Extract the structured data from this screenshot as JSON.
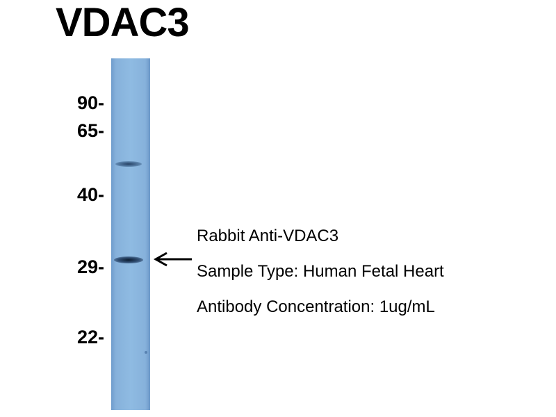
{
  "title": "VDAC3",
  "mw_markers": [
    {
      "label": "90-",
      "kda": 90
    },
    {
      "label": "65-",
      "kda": 65
    },
    {
      "label": "40-",
      "kda": 40
    },
    {
      "label": "29-",
      "kda": 29
    },
    {
      "label": "22-",
      "kda": 22
    }
  ],
  "annotations": {
    "antibody": "Rabbit Anti-VDAC3",
    "sample_type": "Sample Type: Human Fetal Heart",
    "concentration": "Antibody Concentration: 1ug/mL"
  },
  "colors": {
    "membrane": "#8fbbe2",
    "band": "#14304f",
    "text": "#000000"
  },
  "icons": {
    "arrow": "arrow-left-icon"
  }
}
